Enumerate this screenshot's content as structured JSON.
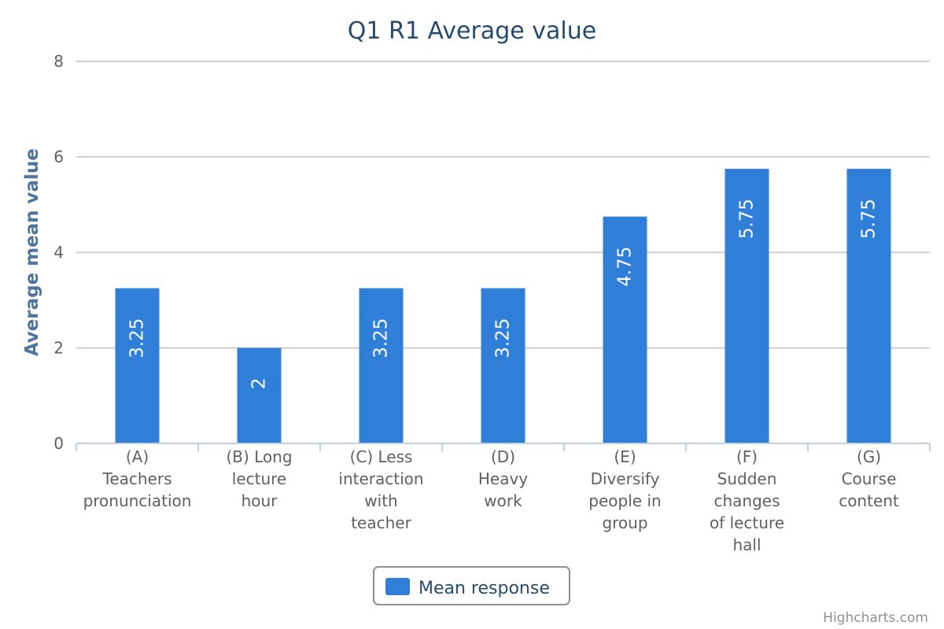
{
  "chart_data": {
    "type": "bar",
    "title": "Q1 R1 Average value",
    "ylabel": "Average mean value",
    "xlabel": "",
    "ylim": [
      0,
      8
    ],
    "yticks": [
      "0",
      "2",
      "4",
      "6",
      "8"
    ],
    "grid": true,
    "legend_position": "bottom-center",
    "categories": [
      [
        "(A)",
        "Teachers",
        "pronunciation"
      ],
      [
        "(B) Long",
        "lecture",
        "hour"
      ],
      [
        "(C) Less",
        "interaction",
        "with",
        "teacher"
      ],
      [
        "(D)",
        "Heavy",
        "work"
      ],
      [
        "(E)",
        "Diversify",
        "people in",
        "group"
      ],
      [
        "(F)",
        "Sudden",
        "changes",
        "of lecture",
        "hall"
      ],
      [
        "(G)",
        "Course",
        "content"
      ]
    ],
    "series": [
      {
        "name": "Mean response",
        "color": "#2f7ed8",
        "values": [
          3.25,
          2,
          3.25,
          3.25,
          4.75,
          5.75,
          5.75
        ],
        "labels": [
          "3.25",
          "2",
          "3.25",
          "3.25",
          "4.75",
          "5.75",
          "5.75"
        ]
      }
    ]
  },
  "credits": "Highcharts.com"
}
